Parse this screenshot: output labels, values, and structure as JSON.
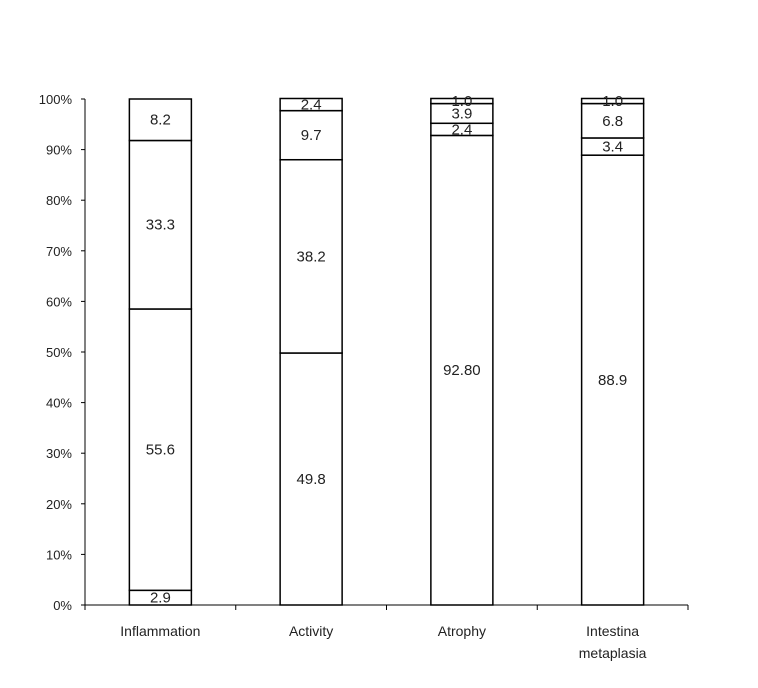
{
  "chart_data": {
    "type": "bar",
    "stacked": true,
    "percent": true,
    "categories": [
      "Inflammation",
      "Activity",
      "Atrophy",
      "Intestina metaplasia"
    ],
    "category_lines": [
      [
        "Inflammation"
      ],
      [
        "Activity"
      ],
      [
        "Atrophy"
      ],
      [
        "Intestina",
        "metaplasia"
      ]
    ],
    "y_ticks": [
      "0%",
      "10%",
      "20%",
      "30%",
      "40%",
      "50%",
      "60%",
      "70%",
      "80%",
      "90%",
      "100%"
    ],
    "ylim": [
      0,
      100
    ],
    "grid": false,
    "stacks": [
      {
        "values": [
          2.9,
          55.6,
          33.3,
          8.2
        ],
        "labels": [
          "2.9",
          "55.6",
          "33.3",
          "8.2"
        ]
      },
      {
        "values": [
          0,
          49.8,
          38.2,
          9.7,
          2.4
        ],
        "labels": [
          "",
          "49.8",
          "38.2",
          "9.7",
          "2.4"
        ]
      },
      {
        "values": [
          0,
          92.8,
          2.4,
          3.9,
          1.0
        ],
        "labels": [
          "",
          "92.80",
          "2.4",
          "3.9",
          "1.0"
        ]
      },
      {
        "values": [
          0,
          88.9,
          3.4,
          6.8,
          1.0
        ],
        "labels": [
          "",
          "88.9",
          "3.4",
          "6.8",
          "1.0"
        ]
      }
    ],
    "colors": {
      "bar_fill": "#ffffff",
      "stroke": "#000000",
      "text": "#222222"
    }
  }
}
